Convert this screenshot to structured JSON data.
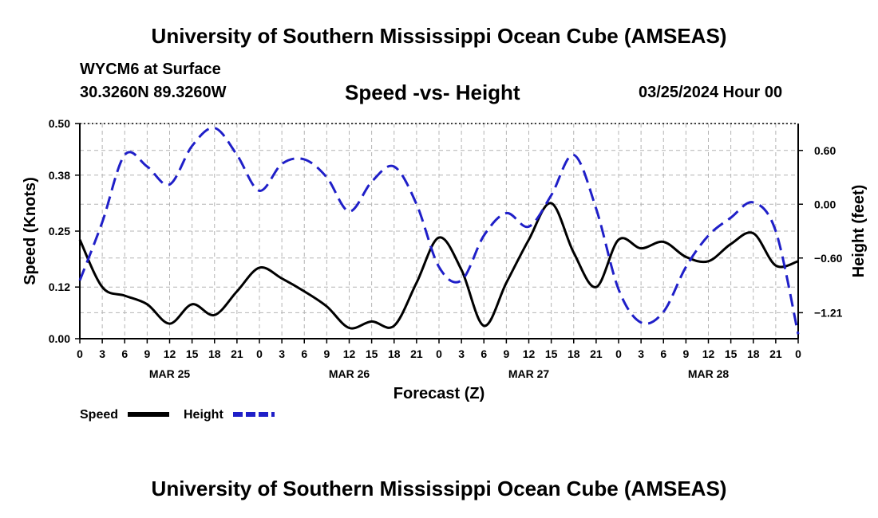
{
  "header": {
    "title": "University of Southern Mississippi Ocean Cube (AMSEAS)",
    "station": "WYCM6 at Surface",
    "coords": "30.3260N  89.3260W",
    "subtitle": "Speed -vs- Height",
    "datetime": "03/25/2024 Hour 00",
    "footer_title": "University of Southern Mississippi Ocean Cube (AMSEAS)"
  },
  "chart_data": {
    "type": "line",
    "title": "Speed -vs- Height",
    "xlabel": "Forecast (Z)",
    "ylabel": "Speed (Knots)",
    "y2label": "Height (feet)",
    "x_unit": "hours",
    "xlim": [
      0,
      96
    ],
    "ylim": [
      0,
      0.5
    ],
    "y2lim": [
      -1.5,
      0.9
    ],
    "grid": true,
    "x_ticks": [
      0,
      3,
      6,
      9,
      12,
      15,
      18,
      21,
      24,
      27,
      30,
      33,
      36,
      39,
      42,
      45,
      48,
      51,
      54,
      57,
      60,
      63,
      66,
      69,
      72,
      75,
      78,
      81,
      84,
      87,
      90,
      93,
      96
    ],
    "x_tick_labels": [
      "0",
      "3",
      "6",
      "9",
      "12",
      "15",
      "18",
      "21",
      "0",
      "3",
      "6",
      "9",
      "12",
      "15",
      "18",
      "21",
      "0",
      "3",
      "6",
      "9",
      "12",
      "15",
      "18",
      "21",
      "0",
      "3",
      "6",
      "9",
      "12",
      "15",
      "18",
      "21",
      "0"
    ],
    "date_labels": [
      {
        "label": "MAR 25",
        "hour": 12
      },
      {
        "label": "MAR 26",
        "hour": 36
      },
      {
        "label": "MAR 27",
        "hour": 60
      },
      {
        "label": "MAR 28",
        "hour": 84
      }
    ],
    "y_ticks": [
      0.0,
      0.12,
      0.25,
      0.38,
      0.5
    ],
    "y_tick_labels": [
      "0.00",
      "0.12",
      "0.25",
      "0.38",
      "0.50"
    ],
    "y2_ticks": [
      0.6,
      0.0,
      -0.6,
      -1.21
    ],
    "y2_tick_labels": [
      "0.60",
      "0.00",
      "−0.60",
      "−1.21"
    ],
    "series": [
      {
        "name": "Speed",
        "axis": "left",
        "color": "#000000",
        "dash": false,
        "x": [
          0,
          3,
          6,
          9,
          12,
          15,
          18,
          21,
          24,
          27,
          30,
          33,
          36,
          39,
          42,
          45,
          48,
          51,
          54,
          57,
          60,
          63,
          66,
          69,
          72,
          75,
          78,
          81,
          84,
          87,
          90,
          93,
          96
        ],
        "values": [
          0.23,
          0.12,
          0.1,
          0.08,
          0.035,
          0.08,
          0.055,
          0.11,
          0.165,
          0.14,
          0.11,
          0.075,
          0.025,
          0.04,
          0.03,
          0.13,
          0.235,
          0.16,
          0.03,
          0.13,
          0.23,
          0.315,
          0.2,
          0.12,
          0.23,
          0.21,
          0.225,
          0.19,
          0.18,
          0.22,
          0.245,
          0.17,
          0.18
        ]
      },
      {
        "name": "Height",
        "axis": "right",
        "color": "#1f1fc8",
        "dash": true,
        "x": [
          0,
          3,
          6,
          9,
          12,
          15,
          18,
          21,
          24,
          27,
          30,
          33,
          36,
          39,
          42,
          45,
          48,
          51,
          54,
          57,
          60,
          63,
          66,
          69,
          72,
          75,
          78,
          81,
          84,
          87,
          90,
          93,
          96
        ],
        "values": [
          -0.85,
          -0.2,
          0.55,
          0.42,
          0.22,
          0.65,
          0.85,
          0.55,
          0.15,
          0.45,
          0.5,
          0.3,
          -0.08,
          0.25,
          0.42,
          0.0,
          -0.7,
          -0.85,
          -0.35,
          -0.1,
          -0.25,
          0.1,
          0.55,
          -0.05,
          -0.95,
          -1.32,
          -1.2,
          -0.7,
          -0.35,
          -0.15,
          0.02,
          -0.3,
          -1.45
        ]
      }
    ],
    "legend": [
      {
        "label": "Speed",
        "color": "#000000",
        "dash": false
      },
      {
        "label": "Height",
        "color": "#1f1fc8",
        "dash": true
      }
    ]
  }
}
